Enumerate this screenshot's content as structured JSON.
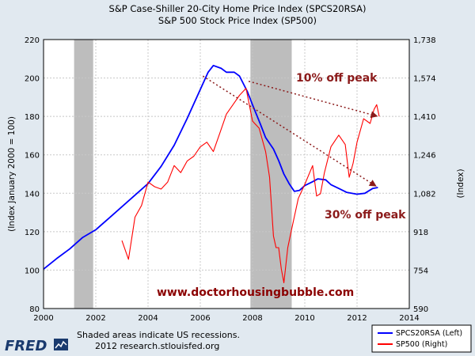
{
  "chart_data": {
    "type": "line",
    "title_lines": [
      "S&P Case-Shiller 20-City Home Price Index (SPCS20RSA)",
      "S&P 500 Stock Price Index (SP500)"
    ],
    "xlim": [
      2000,
      2014
    ],
    "x_ticks": [
      "2000",
      "2002",
      "2004",
      "2006",
      "2008",
      "2010",
      "2012",
      "2014"
    ],
    "ylabel_left": "(Index January 2000 = 100)",
    "ylim_left": [
      80,
      220
    ],
    "y_ticks_left": [
      "80",
      "100",
      "120",
      "140",
      "160",
      "180",
      "200",
      "220"
    ],
    "ylabel_right": "(Index)",
    "ylim_right": [
      590,
      1738
    ],
    "y_ticks_right": [
      "590",
      "754",
      "918",
      "1,082",
      "1,246",
      "1,410",
      "1,574",
      "1,738"
    ],
    "grid": true,
    "recessions": [
      [
        2001.17,
        2001.9
      ],
      [
        2007.92,
        2009.5
      ]
    ],
    "series": [
      {
        "name": "SPCS20RSA (Left)",
        "axis": "left",
        "color": "#0000ff",
        "x": [
          2000.0,
          2000.5,
          2001.0,
          2001.5,
          2002.0,
          2002.5,
          2003.0,
          2003.5,
          2004.0,
          2004.5,
          2005.0,
          2005.5,
          2006.0,
          2006.3,
          2006.5,
          2006.8,
          2007.0,
          2007.3,
          2007.5,
          2007.8,
          2008.0,
          2008.3,
          2008.5,
          2008.8,
          2009.0,
          2009.2,
          2009.4,
          2009.6,
          2009.8,
          2010.0,
          2010.3,
          2010.5,
          2010.8,
          2011.0,
          2011.3,
          2011.6,
          2012.0,
          2012.3,
          2012.6,
          2012.8
        ],
        "values": [
          100.5,
          106,
          111,
          117,
          121,
          127,
          133,
          139,
          145,
          154,
          165,
          179,
          194,
          203,
          206.5,
          205,
          203,
          203,
          201,
          193,
          186,
          176,
          169,
          163,
          157,
          150,
          145,
          141,
          141.5,
          144,
          146,
          147.5,
          147,
          144.5,
          142.5,
          140.5,
          139.5,
          140,
          142.5,
          143
        ]
      },
      {
        "name": "SP500 (Right)",
        "axis": "right",
        "color": "#ff0000",
        "x": [
          2003.0,
          2003.25,
          2003.5,
          2003.75,
          2004.0,
          2004.25,
          2004.5,
          2004.75,
          2005.0,
          2005.25,
          2005.5,
          2005.75,
          2006.0,
          2006.25,
          2006.5,
          2006.75,
          2007.0,
          2007.25,
          2007.5,
          2007.75,
          2008.0,
          2008.25,
          2008.5,
          2008.65,
          2008.8,
          2008.9,
          2009.0,
          2009.1,
          2009.2,
          2009.35,
          2009.5,
          2009.75,
          2010.0,
          2010.3,
          2010.45,
          2010.6,
          2010.75,
          2011.0,
          2011.3,
          2011.55,
          2011.7,
          2011.85,
          2012.0,
          2012.25,
          2012.5,
          2012.65,
          2012.75,
          2012.85
        ],
        "values": [
          880,
          800,
          980,
          1030,
          1130,
          1110,
          1100,
          1130,
          1200,
          1170,
          1220,
          1240,
          1280,
          1300,
          1260,
          1340,
          1420,
          1460,
          1500,
          1530,
          1390,
          1360,
          1260,
          1150,
          900,
          850,
          850,
          760,
          700,
          850,
          930,
          1060,
          1120,
          1200,
          1070,
          1080,
          1170,
          1280,
          1330,
          1290,
          1150,
          1210,
          1300,
          1400,
          1380,
          1440,
          1460,
          1410
        ]
      }
    ],
    "legend": {
      "placement": "bottom-right",
      "entries": [
        "SPCS20RSA (Left)",
        "SP500 (Right)"
      ]
    },
    "annotations": {
      "ten_off": "10% off peak",
      "thirty_off": "30% off peak",
      "website": "www.doctorhousingbubble.com"
    }
  },
  "footer": {
    "logo_text": "FRED",
    "line1": "Shaded areas indicate US recessions.",
    "line2": "2012 research.stlouisfed.org"
  }
}
